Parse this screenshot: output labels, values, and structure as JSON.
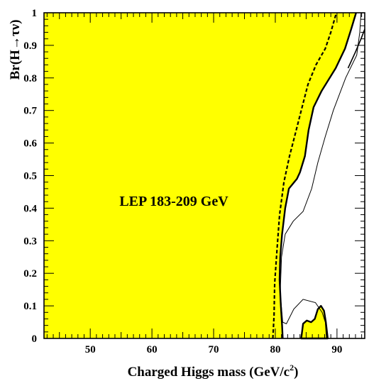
{
  "chart_data": {
    "type": "area",
    "xlabel_main": "Charged Higgs mass (GeV/c",
    "xlabel_sup": "2",
    "xlabel_close": ")",
    "ylabel": "Br(H→τν)",
    "annotation": "LEP 183-209 GeV",
    "xlim": [
      42.5,
      94.5
    ],
    "ylim": [
      0,
      1
    ],
    "x_ticks": [
      50,
      60,
      70,
      80,
      90
    ],
    "y_ticks": [
      0,
      0.1,
      0.2,
      0.3,
      0.4,
      0.5,
      0.6,
      0.7,
      0.8,
      0.9,
      1
    ],
    "colors": {
      "excluded_fill": "#ffff00",
      "lines": "#000000",
      "frame": "#000000"
    },
    "excluded_region_boundary": [
      [
        81.2,
        0.0
      ],
      [
        81.1,
        0.04
      ],
      [
        80.9,
        0.1
      ],
      [
        80.7,
        0.18
      ],
      [
        80.8,
        0.25
      ],
      [
        81.1,
        0.32
      ],
      [
        81.6,
        0.4
      ],
      [
        82.2,
        0.46
      ],
      [
        83.5,
        0.49
      ],
      [
        84.0,
        0.51
      ],
      [
        84.8,
        0.56
      ],
      [
        85.4,
        0.64
      ],
      [
        86.2,
        0.71
      ],
      [
        87.5,
        0.76
      ],
      [
        89.8,
        0.83
      ],
      [
        91.3,
        0.89
      ],
      [
        92.3,
        0.95
      ],
      [
        93.1,
        1.0
      ]
    ],
    "excluded_island": [
      [
        84.2,
        0.0
      ],
      [
        84.5,
        0.045
      ],
      [
        85.1,
        0.055
      ],
      [
        85.8,
        0.05
      ],
      [
        86.4,
        0.06
      ],
      [
        86.9,
        0.09
      ],
      [
        87.4,
        0.1
      ],
      [
        87.9,
        0.085
      ],
      [
        88.2,
        0.05
      ],
      [
        88.5,
        0.0
      ]
    ],
    "expected_dashed": [
      [
        79.6,
        0.0
      ],
      [
        79.8,
        0.07
      ],
      [
        79.9,
        0.17
      ],
      [
        80.3,
        0.28
      ],
      [
        80.7,
        0.38
      ],
      [
        81.4,
        0.48
      ],
      [
        82.3,
        0.56
      ],
      [
        83.4,
        0.64
      ],
      [
        84.2,
        0.7
      ],
      [
        85.3,
        0.78
      ],
      [
        86.6,
        0.84
      ],
      [
        88.1,
        0.89
      ],
      [
        89.0,
        0.94
      ],
      [
        89.6,
        0.98
      ],
      [
        89.9,
        1.0
      ]
    ],
    "thin_curve": [
      [
        93.9,
        1.0
      ],
      [
        93.7,
        0.94
      ],
      [
        93.2,
        0.87
      ],
      [
        91.4,
        0.8
      ],
      [
        89.4,
        0.7
      ],
      [
        88.1,
        0.62
      ],
      [
        86.9,
        0.54
      ],
      [
        85.9,
        0.46
      ],
      [
        84.5,
        0.39
      ],
      [
        82.9,
        0.36
      ],
      [
        81.6,
        0.32
      ],
      [
        81.0,
        0.25
      ],
      [
        80.8,
        0.14
      ],
      [
        81.2,
        0.05
      ],
      [
        81.8,
        0.045
      ],
      [
        83.0,
        0.09
      ],
      [
        84.5,
        0.12
      ],
      [
        86.5,
        0.11
      ],
      [
        87.6,
        0.08
      ],
      [
        88.1,
        0.05
      ],
      [
        88.3,
        0.0
      ]
    ],
    "right_edge_curve": [
      [
        94.5,
        0.95
      ],
      [
        93.9,
        0.92
      ],
      [
        93.0,
        0.88
      ],
      [
        91.8,
        0.83
      ]
    ]
  }
}
